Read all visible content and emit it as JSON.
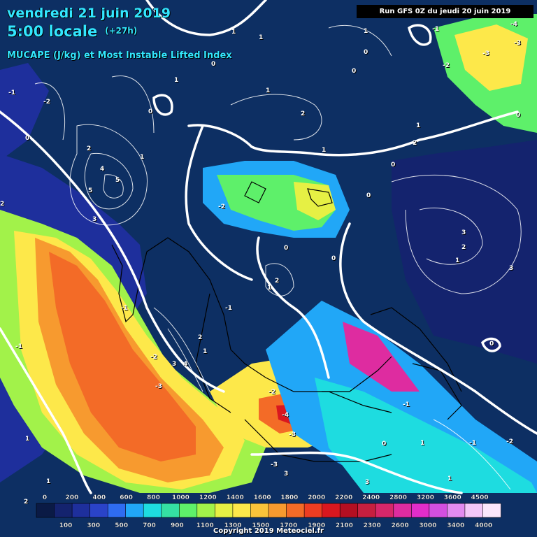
{
  "header": {
    "date": "vendredi 21 juin 2019",
    "time": "5:00 locale",
    "lead": "(+27h)",
    "parameter": "MUCAPE (J/kg) et Most Instable Lifted Index",
    "run": "Run GFS 0Z du jeudi 20 juin 2019"
  },
  "legend": {
    "top_ticks": [
      "0",
      "200",
      "400",
      "600",
      "800",
      "1000",
      "1200",
      "1400",
      "1600",
      "1800",
      "2000",
      "2200",
      "2400",
      "2800",
      "3200",
      "3600",
      "4500"
    ],
    "bottom_ticks": [
      "100",
      "300",
      "500",
      "700",
      "900",
      "1100",
      "1300",
      "1500",
      "1700",
      "1900",
      "2100",
      "2300",
      "2600",
      "3000",
      "3400",
      "4000"
    ],
    "colors": [
      "#0a1a45",
      "#14236e",
      "#1e2f9c",
      "#2a43c8",
      "#2f6cf0",
      "#21a7f7",
      "#1edce0",
      "#35e0a3",
      "#5ef06a",
      "#a2f24a",
      "#e6f044",
      "#fde84a",
      "#f9c33a",
      "#f79a2f",
      "#f36b27",
      "#ee3d22",
      "#d9171f",
      "#b30f22",
      "#c61f3f",
      "#d6276a",
      "#de2ca0",
      "#e22dca",
      "#d34fe0",
      "#e28bf0",
      "#f3c6f8",
      "#fbe6fb"
    ]
  },
  "isolines": {
    "labels": [
      "-4",
      "-3",
      "-2",
      "-1",
      "0",
      "1",
      "2",
      "3",
      "4",
      "5"
    ]
  },
  "copyright": "Copyright 2019 Meteociel.fr",
  "colors": {
    "background": "#0b2a5a",
    "title": "#32e6ff",
    "coast": "#000000",
    "contour": "#ffffff"
  }
}
